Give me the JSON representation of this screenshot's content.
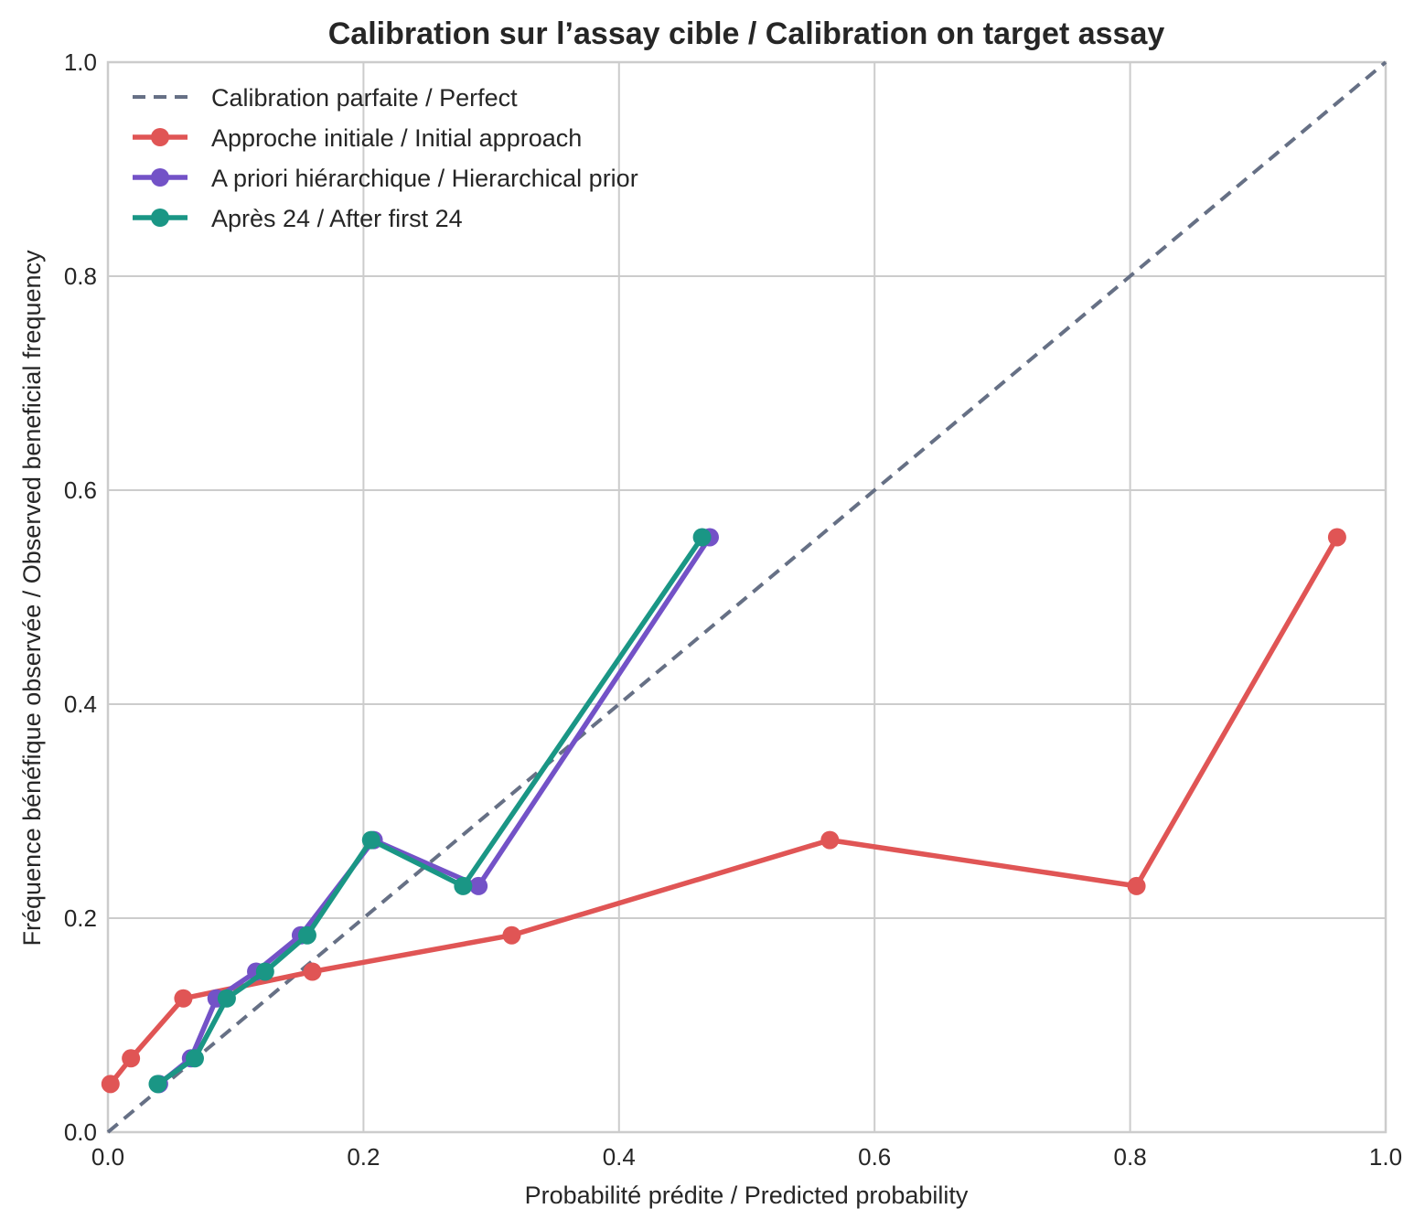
{
  "chart_data": {
    "type": "line",
    "title": "Calibration sur l’assay cible / Calibration on target assay",
    "xlabel": "Probabilité prédite / Predicted probability",
    "ylabel": "Fréquence bénéfique observée / Observed beneficial frequency",
    "xlim": [
      0.0,
      1.0
    ],
    "ylim": [
      0.0,
      1.0
    ],
    "x_ticks": [
      "0.0",
      "0.2",
      "0.4",
      "0.6",
      "0.8",
      "1.0"
    ],
    "y_ticks": [
      "0.0",
      "0.2",
      "0.4",
      "0.6",
      "0.8",
      "1.0"
    ],
    "x_tick_values": [
      0.0,
      0.2,
      0.4,
      0.6,
      0.8,
      1.0
    ],
    "y_tick_values": [
      0.0,
      0.2,
      0.4,
      0.6,
      0.8,
      1.0
    ],
    "grid": true,
    "legend_position": "top-left",
    "reference_line": {
      "name": "Calibration parfaite / Perfect",
      "color": "#667085",
      "style": "dashed",
      "x": [
        0.0,
        1.0
      ],
      "y": [
        0.0,
        1.0
      ]
    },
    "series": [
      {
        "name": "Approche initiale / Initial approach",
        "color": "#e05555",
        "x": [
          0.002,
          0.018,
          0.059,
          0.16,
          0.316,
          0.565,
          0.805,
          0.962
        ],
        "y": [
          0.045,
          0.069,
          0.125,
          0.15,
          0.184,
          0.273,
          0.23,
          0.556
        ]
      },
      {
        "name": "A priori hiérarchique / Hierarchical prior",
        "color": "#7352c7",
        "x": [
          0.04,
          0.065,
          0.085,
          0.116,
          0.151,
          0.208,
          0.29,
          0.471
        ],
        "y": [
          0.045,
          0.069,
          0.125,
          0.15,
          0.184,
          0.273,
          0.23,
          0.556
        ]
      },
      {
        "name": "Après 24 / After first 24",
        "color": "#1a9685",
        "x": [
          0.039,
          0.068,
          0.093,
          0.123,
          0.156,
          0.206,
          0.278,
          0.465
        ],
        "y": [
          0.045,
          0.069,
          0.125,
          0.15,
          0.184,
          0.273,
          0.23,
          0.556
        ]
      }
    ]
  }
}
